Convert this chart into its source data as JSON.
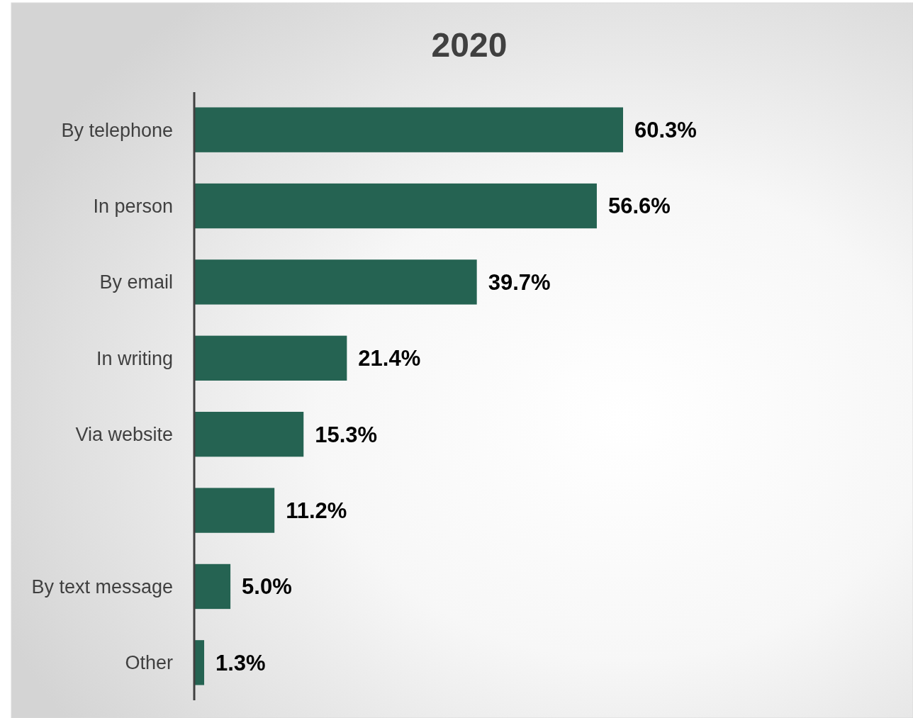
{
  "chart_data": {
    "type": "bar",
    "orientation": "horizontal",
    "title": "2020",
    "categories": [
      "By telephone",
      "In person",
      "By email",
      "In writing",
      "Via website",
      null,
      "By text message",
      "Other"
    ],
    "values": [
      60.3,
      56.6,
      39.7,
      21.4,
      15.3,
      11.2,
      5.0,
      1.3
    ],
    "value_labels": [
      "60.3%",
      "56.6%",
      "39.7%",
      "21.4%",
      "15.3%",
      "11.2%",
      "5.0%",
      "1.3%"
    ],
    "color": "#256352"
  }
}
